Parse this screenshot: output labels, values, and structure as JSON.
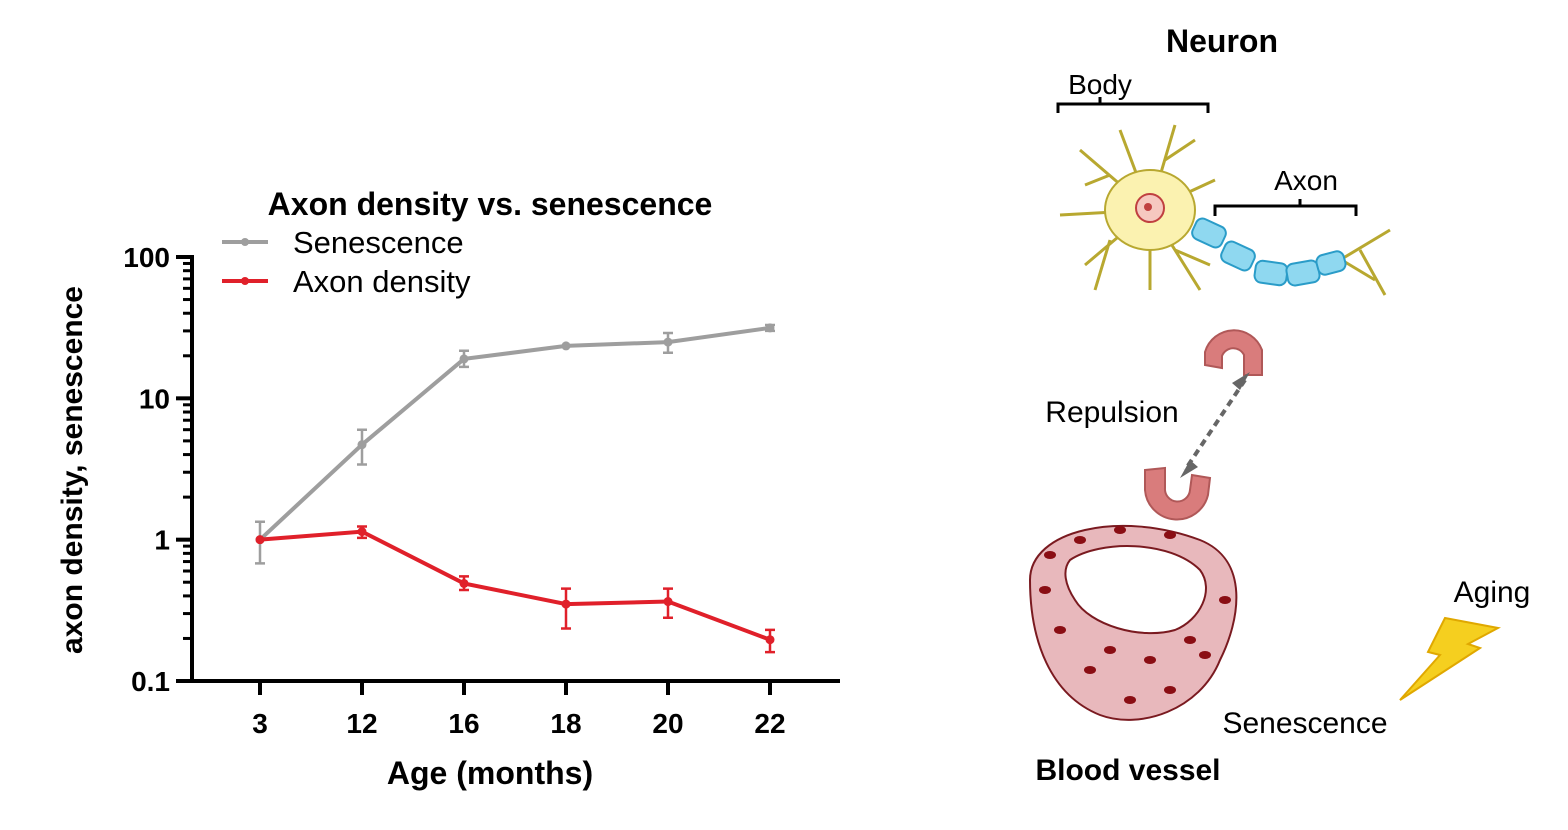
{
  "chart_data": {
    "type": "line",
    "title": "Axon density vs. senescence",
    "xlabel": "Age (months)",
    "ylabel": "axon density, senescence",
    "yscale": "log",
    "ylim": [
      0.1,
      100
    ],
    "yticks": [
      "100",
      "10",
      "1",
      "0.1"
    ],
    "categories": [
      "3",
      "12",
      "16",
      "18",
      "20",
      "22"
    ],
    "legend_position": "top-left",
    "series": [
      {
        "name": "Senescence",
        "color": "#9e9e9e",
        "values": [
          1.0,
          4.7,
          19,
          23.5,
          25,
          31.5
        ],
        "err_low": [
          0.68,
          3.4,
          16.7,
          23.5,
          21,
          30
        ],
        "err_high": [
          1.34,
          6.0,
          21.7,
          23.5,
          29,
          33
        ]
      },
      {
        "name": "Axon density",
        "color": "#e0202a",
        "values": [
          1.0,
          1.14,
          0.49,
          0.35,
          0.365,
          0.196
        ],
        "err_low": [
          1.0,
          1.03,
          0.44,
          0.235,
          0.28,
          0.16
        ],
        "err_high": [
          1.0,
          1.24,
          0.55,
          0.45,
          0.45,
          0.23
        ]
      }
    ]
  },
  "diagram": {
    "neuron_title": "Neuron",
    "body_label": "Body",
    "axon_label": "Axon",
    "repulsion_label": "Repulsion",
    "vessel_label": "Blood vessel",
    "aging_label": "Aging",
    "senescence_label": "Senescence"
  }
}
